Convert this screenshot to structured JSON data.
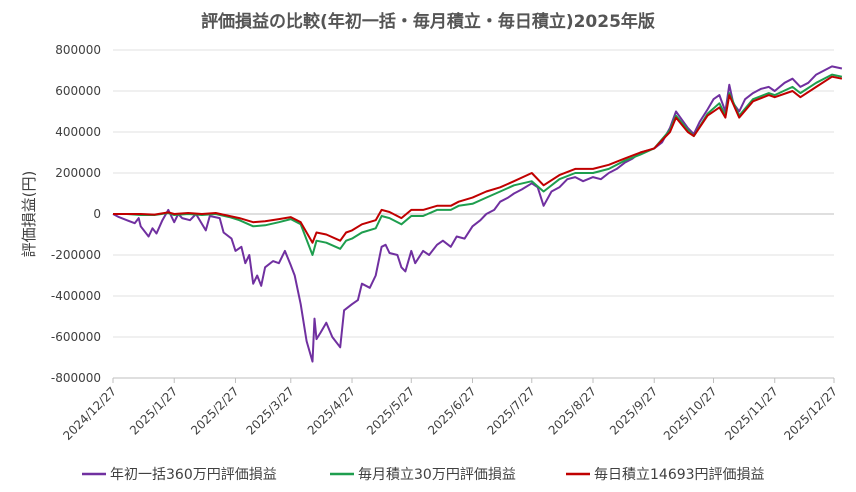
{
  "chart_data": {
    "type": "line",
    "title": "評価損益の比較(年初一括・毎月積立・毎日積立)2025年版",
    "xlabel": "",
    "ylabel": "評価損益(円)",
    "ylim": [
      -800000,
      800000
    ],
    "yticks": [
      "800000",
      "600000",
      "400000",
      "200000",
      "0",
      "-200000",
      "-400000",
      "-600000",
      "-800000"
    ],
    "xticks": [
      "2024/12/27",
      "2025/1/27",
      "2025/2/27",
      "2025/3/27",
      "2025/4/27",
      "2025/5/27",
      "2025/6/27",
      "2025/7/27",
      "2025/8/27",
      "2025/9/27",
      "2025/10/27",
      "2025/11/27",
      "2025/12/27"
    ],
    "grid": true,
    "legend_position": "bottom",
    "series": [
      {
        "name": "年初一括360万円評価損益",
        "color": "#7030A0",
        "points": [
          [
            "2024/12/27",
            0
          ],
          [
            "2024/12/30",
            -15000
          ],
          [
            "2025/1/3",
            -30000
          ],
          [
            "2025/1/7",
            -45000
          ],
          [
            "2025/1/9",
            -20000
          ],
          [
            "2025/1/10",
            -60000
          ],
          [
            "2025/1/14",
            -110000
          ],
          [
            "2025/1/16",
            -70000
          ],
          [
            "2025/1/18",
            -95000
          ],
          [
            "2025/1/21",
            -30000
          ],
          [
            "2025/1/24",
            20000
          ],
          [
            "2025/1/27",
            -40000
          ],
          [
            "2025/1/29",
            0
          ],
          [
            "2025/1/31",
            -20000
          ],
          [
            "2025/2/4",
            -30000
          ],
          [
            "2025/2/7",
            0
          ],
          [
            "2025/2/12",
            -80000
          ],
          [
            "2025/2/14",
            -10000
          ],
          [
            "2025/2/19",
            -20000
          ],
          [
            "2025/2/21",
            -90000
          ],
          [
            "2025/2/25",
            -120000
          ],
          [
            "2025/2/27",
            -180000
          ],
          [
            "2025/3/2",
            -160000
          ],
          [
            "2025/3/4",
            -240000
          ],
          [
            "2025/3/6",
            -200000
          ],
          [
            "2025/3/8",
            -340000
          ],
          [
            "2025/3/10",
            -300000
          ],
          [
            "2025/3/12",
            -350000
          ],
          [
            "2025/3/14",
            -260000
          ],
          [
            "2025/3/18",
            -230000
          ],
          [
            "2025/3/21",
            -240000
          ],
          [
            "2025/3/24",
            -180000
          ],
          [
            "2025/3/27",
            -250000
          ],
          [
            "2025/3/29",
            -300000
          ],
          [
            "2025/4/1",
            -440000
          ],
          [
            "2025/4/4",
            -620000
          ],
          [
            "2025/4/7",
            -720000
          ],
          [
            "2025/4/8",
            -510000
          ],
          [
            "2025/4/9",
            -610000
          ],
          [
            "2025/4/11",
            -580000
          ],
          [
            "2025/4/14",
            -530000
          ],
          [
            "2025/4/17",
            -600000
          ],
          [
            "2025/4/21",
            -650000
          ],
          [
            "2025/4/23",
            -470000
          ],
          [
            "2025/4/27",
            -440000
          ],
          [
            "2025/4/30",
            -420000
          ],
          [
            "2025/5/2",
            -340000
          ],
          [
            "2025/5/6",
            -360000
          ],
          [
            "2025/5/9",
            -300000
          ],
          [
            "2025/5/12",
            -160000
          ],
          [
            "2025/5/14",
            -150000
          ],
          [
            "2025/5/16",
            -190000
          ],
          [
            "2025/5/20",
            -200000
          ],
          [
            "2025/5/22",
            -260000
          ],
          [
            "2025/5/24",
            -280000
          ],
          [
            "2025/5/27",
            -180000
          ],
          [
            "2025/5/29",
            -240000
          ],
          [
            "2025/6/2",
            -180000
          ],
          [
            "2025/6/5",
            -200000
          ],
          [
            "2025/6/9",
            -150000
          ],
          [
            "2025/6/12",
            -130000
          ],
          [
            "2025/6/16",
            -160000
          ],
          [
            "2025/6/19",
            -110000
          ],
          [
            "2025/6/23",
            -120000
          ],
          [
            "2025/6/27",
            -60000
          ],
          [
            "2025/7/1",
            -30000
          ],
          [
            "2025/7/4",
            0
          ],
          [
            "2025/7/8",
            20000
          ],
          [
            "2025/7/11",
            60000
          ],
          [
            "2025/7/15",
            80000
          ],
          [
            "2025/7/18",
            100000
          ],
          [
            "2025/7/22",
            120000
          ],
          [
            "2025/7/27",
            150000
          ],
          [
            "2025/7/30",
            130000
          ],
          [
            "2025/8/2",
            40000
          ],
          [
            "2025/8/6",
            110000
          ],
          [
            "2025/8/10",
            130000
          ],
          [
            "2025/8/14",
            170000
          ],
          [
            "2025/8/18",
            180000
          ],
          [
            "2025/8/22",
            160000
          ],
          [
            "2025/8/27",
            180000
          ],
          [
            "2025/8/31",
            170000
          ],
          [
            "2025/9/4",
            200000
          ],
          [
            "2025/9/8",
            220000
          ],
          [
            "2025/9/12",
            250000
          ],
          [
            "2025/9/16",
            270000
          ],
          [
            "2025/9/20",
            300000
          ],
          [
            "2025/9/24",
            310000
          ],
          [
            "2025/9/27",
            320000
          ],
          [
            "2025/10/1",
            350000
          ],
          [
            "2025/10/5",
            420000
          ],
          [
            "2025/10/8",
            500000
          ],
          [
            "2025/10/11",
            460000
          ],
          [
            "2025/10/14",
            420000
          ],
          [
            "2025/10/17",
            390000
          ],
          [
            "2025/10/20",
            450000
          ],
          [
            "2025/10/24",
            510000
          ],
          [
            "2025/10/27",
            560000
          ],
          [
            "2025/10/30",
            580000
          ],
          [
            "2025/11/2",
            500000
          ],
          [
            "2025/11/4",
            630000
          ],
          [
            "2025/11/6",
            540000
          ],
          [
            "2025/11/9",
            500000
          ],
          [
            "2025/11/12",
            560000
          ],
          [
            "2025/11/16",
            590000
          ],
          [
            "2025/11/20",
            610000
          ],
          [
            "2025/11/24",
            620000
          ],
          [
            "2025/11/27",
            600000
          ],
          [
            "2025/12/2",
            640000
          ],
          [
            "2025/12/6",
            660000
          ],
          [
            "2025/12/10",
            620000
          ],
          [
            "2025/12/14",
            640000
          ],
          [
            "2025/12/18",
            680000
          ],
          [
            "2025/12/22",
            700000
          ],
          [
            "2025/12/26",
            720000
          ],
          [
            "2025/12/31",
            710000
          ]
        ]
      },
      {
        "name": "毎月積立30万円評価損益",
        "color": "#1E9E4E",
        "points": [
          [
            "2024/12/27",
            0
          ],
          [
            "2025/1/3",
            0
          ],
          [
            "2025/1/10",
            -5000
          ],
          [
            "2025/1/17",
            -5000
          ],
          [
            "2025/1/24",
            5000
          ],
          [
            "2025/1/27",
            -5000
          ],
          [
            "2025/2/3",
            0
          ],
          [
            "2025/2/10",
            -5000
          ],
          [
            "2025/2/17",
            0
          ],
          [
            "2025/2/24",
            -15000
          ],
          [
            "2025/3/1",
            -30000
          ],
          [
            "2025/3/8",
            -60000
          ],
          [
            "2025/3/14",
            -55000
          ],
          [
            "2025/3/21",
            -40000
          ],
          [
            "2025/3/27",
            -25000
          ],
          [
            "2025/4/1",
            -50000
          ],
          [
            "2025/4/7",
            -200000
          ],
          [
            "2025/4/9",
            -130000
          ],
          [
            "2025/4/14",
            -140000
          ],
          [
            "2025/4/21",
            -170000
          ],
          [
            "2025/4/24",
            -130000
          ],
          [
            "2025/4/27",
            -120000
          ],
          [
            "2025/5/2",
            -90000
          ],
          [
            "2025/5/9",
            -70000
          ],
          [
            "2025/5/12",
            -10000
          ],
          [
            "2025/5/16",
            -20000
          ],
          [
            "2025/5/22",
            -50000
          ],
          [
            "2025/5/27",
            -10000
          ],
          [
            "2025/6/2",
            -10000
          ],
          [
            "2025/6/9",
            20000
          ],
          [
            "2025/6/16",
            20000
          ],
          [
            "2025/6/20",
            40000
          ],
          [
            "2025/6/27",
            50000
          ],
          [
            "2025/7/4",
            80000
          ],
          [
            "2025/7/11",
            110000
          ],
          [
            "2025/7/18",
            140000
          ],
          [
            "2025/7/27",
            160000
          ],
          [
            "2025/8/2",
            110000
          ],
          [
            "2025/8/10",
            170000
          ],
          [
            "2025/8/18",
            200000
          ],
          [
            "2025/8/27",
            200000
          ],
          [
            "2025/9/4",
            220000
          ],
          [
            "2025/9/12",
            260000
          ],
          [
            "2025/9/20",
            290000
          ],
          [
            "2025/9/27",
            320000
          ],
          [
            "2025/10/5",
            410000
          ],
          [
            "2025/10/8",
            480000
          ],
          [
            "2025/10/14",
            410000
          ],
          [
            "2025/10/17",
            380000
          ],
          [
            "2025/10/24",
            490000
          ],
          [
            "2025/10/30",
            540000
          ],
          [
            "2025/11/2",
            480000
          ],
          [
            "2025/11/4",
            590000
          ],
          [
            "2025/11/9",
            480000
          ],
          [
            "2025/11/16",
            560000
          ],
          [
            "2025/11/24",
            590000
          ],
          [
            "2025/11/27",
            580000
          ],
          [
            "2025/12/6",
            620000
          ],
          [
            "2025/12/10",
            590000
          ],
          [
            "2025/12/18",
            640000
          ],
          [
            "2025/12/26",
            680000
          ],
          [
            "2025/12/31",
            670000
          ]
        ]
      },
      {
        "name": "毎日積立14693円評価損益",
        "color": "#C00000",
        "points": [
          [
            "2024/12/27",
            0
          ],
          [
            "2025/1/3",
            0
          ],
          [
            "2025/1/10",
            0
          ],
          [
            "2025/1/17",
            -3000
          ],
          [
            "2025/1/24",
            8000
          ],
          [
            "2025/1/27",
            0
          ],
          [
            "2025/2/3",
            5000
          ],
          [
            "2025/2/10",
            0
          ],
          [
            "2025/2/17",
            5000
          ],
          [
            "2025/2/24",
            -10000
          ],
          [
            "2025/3/1",
            -20000
          ],
          [
            "2025/3/8",
            -40000
          ],
          [
            "2025/3/14",
            -35000
          ],
          [
            "2025/3/21",
            -25000
          ],
          [
            "2025/3/27",
            -15000
          ],
          [
            "2025/4/1",
            -40000
          ],
          [
            "2025/4/7",
            -140000
          ],
          [
            "2025/4/9",
            -90000
          ],
          [
            "2025/4/14",
            -100000
          ],
          [
            "2025/4/21",
            -130000
          ],
          [
            "2025/4/24",
            -90000
          ],
          [
            "2025/4/27",
            -80000
          ],
          [
            "2025/5/2",
            -50000
          ],
          [
            "2025/5/9",
            -30000
          ],
          [
            "2025/5/12",
            20000
          ],
          [
            "2025/5/16",
            10000
          ],
          [
            "2025/5/22",
            -20000
          ],
          [
            "2025/5/27",
            20000
          ],
          [
            "2025/6/2",
            20000
          ],
          [
            "2025/6/9",
            40000
          ],
          [
            "2025/6/16",
            40000
          ],
          [
            "2025/6/20",
            60000
          ],
          [
            "2025/6/27",
            80000
          ],
          [
            "2025/7/4",
            110000
          ],
          [
            "2025/7/11",
            130000
          ],
          [
            "2025/7/18",
            160000
          ],
          [
            "2025/7/27",
            200000
          ],
          [
            "2025/8/2",
            140000
          ],
          [
            "2025/8/10",
            190000
          ],
          [
            "2025/8/18",
            220000
          ],
          [
            "2025/8/27",
            220000
          ],
          [
            "2025/9/4",
            240000
          ],
          [
            "2025/9/12",
            270000
          ],
          [
            "2025/9/20",
            300000
          ],
          [
            "2025/9/27",
            320000
          ],
          [
            "2025/10/5",
            400000
          ],
          [
            "2025/10/8",
            470000
          ],
          [
            "2025/10/14",
            400000
          ],
          [
            "2025/10/17",
            380000
          ],
          [
            "2025/10/24",
            480000
          ],
          [
            "2025/10/30",
            520000
          ],
          [
            "2025/11/2",
            470000
          ],
          [
            "2025/11/4",
            580000
          ],
          [
            "2025/11/9",
            470000
          ],
          [
            "2025/11/16",
            550000
          ],
          [
            "2025/11/24",
            580000
          ],
          [
            "2025/11/27",
            570000
          ],
          [
            "2025/12/6",
            600000
          ],
          [
            "2025/12/10",
            570000
          ],
          [
            "2025/12/18",
            620000
          ],
          [
            "2025/12/26",
            670000
          ],
          [
            "2025/12/31",
            660000
          ]
        ]
      }
    ]
  }
}
